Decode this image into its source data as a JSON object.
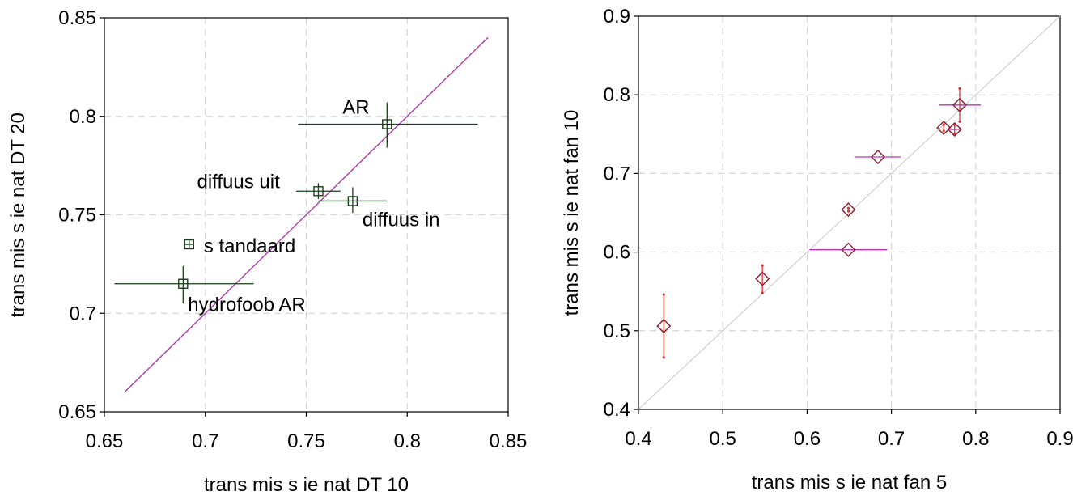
{
  "chart_data": [
    {
      "type": "scatter",
      "xlabel": "trans mis s ie  nat DT 10",
      "ylabel": "trans mis s ie  nat DT 20",
      "xlim": [
        0.65,
        0.85
      ],
      "ylim": [
        0.65,
        0.85
      ],
      "xticks": [
        0.65,
        0.7,
        0.75,
        0.8,
        0.85
      ],
      "yticks": [
        0.65,
        0.7,
        0.75,
        0.8,
        0.85
      ],
      "xtick_labels": [
        "0.65",
        "0.7",
        "0.75",
        "0.8",
        "0.85"
      ],
      "ytick_labels": [
        "0.65",
        "0.7",
        "0.75",
        "0.8",
        "0.85"
      ],
      "grid": true,
      "marker_color": "#1a3d1a",
      "errorbar_color": "#1a3d1a",
      "fit_line": {
        "color": "#b03aa8",
        "x": [
          0.66,
          0.84
        ],
        "y": [
          0.66,
          0.84
        ]
      },
      "points": [
        {
          "label": "AR",
          "x": 0.79,
          "y": 0.796,
          "xerr": [
            0.044,
            0.045
          ],
          "yerr": [
            0.012,
            0.011
          ]
        },
        {
          "label": "diffuus  uit",
          "x": 0.756,
          "y": 0.762,
          "xerr": [
            0.011,
            0.011
          ],
          "yerr": [
            0.004,
            0.004
          ]
        },
        {
          "label": "diffuus  in",
          "x": 0.773,
          "y": 0.757,
          "xerr": [
            0.017,
            0.017
          ],
          "yerr": [
            0.006,
            0.007
          ]
        },
        {
          "label": "s tandaard",
          "x": 0.692,
          "y": 0.735,
          "xerr": [
            0.002,
            0.002
          ],
          "yerr": [
            0.002,
            0.002
          ]
        },
        {
          "label": "hydrofoob AR",
          "x": 0.689,
          "y": 0.715,
          "xerr": [
            0.034,
            0.035
          ],
          "yerr": [
            0.01,
            0.009
          ]
        }
      ]
    },
    {
      "type": "scatter",
      "xlabel": "trans mis s ie  nat fan 5",
      "ylabel": "trans mis s ie  nat fan 10",
      "xlim": [
        0.4,
        0.9
      ],
      "ylim": [
        0.4,
        0.9
      ],
      "xticks": [
        0.4,
        0.5,
        0.6,
        0.7,
        0.8,
        0.9
      ],
      "yticks": [
        0.4,
        0.5,
        0.6,
        0.7,
        0.8,
        0.9
      ],
      "xtick_labels": [
        "0.4",
        "0.5",
        "0.6",
        "0.7",
        "0.8",
        "0.9"
      ],
      "ytick_labels": [
        "0.4",
        "0.5",
        "0.6",
        "0.7",
        "0.8",
        "0.9"
      ],
      "grid": true,
      "marker_color": "#8b1a2a",
      "xerror_color": "#b03aa8",
      "yerror_color": "#e03030",
      "identity_line": {
        "color": "#c8c8c8",
        "x": [
          0.4,
          0.9
        ],
        "y": [
          0.4,
          0.9
        ]
      },
      "points": [
        {
          "x": 0.43,
          "y": 0.506,
          "xerr": [
            0,
            0
          ],
          "yerr": [
            0.04,
            0.04
          ]
        },
        {
          "x": 0.547,
          "y": 0.566,
          "xerr": [
            0,
            0
          ],
          "yerr": [
            0.018,
            0.017
          ]
        },
        {
          "x": 0.649,
          "y": 0.603,
          "xerr": [
            0.046,
            0.046
          ],
          "yerr": [
            0,
            0
          ]
        },
        {
          "x": 0.649,
          "y": 0.654,
          "xerr": [
            0,
            0
          ],
          "yerr": [
            0.002,
            0.002
          ]
        },
        {
          "x": 0.684,
          "y": 0.721,
          "xerr": [
            0.028,
            0.027
          ],
          "yerr": [
            0,
            0
          ]
        },
        {
          "x": 0.762,
          "y": 0.758,
          "xerr": [
            0,
            0
          ],
          "yerr": [
            0.004,
            0.004
          ]
        },
        {
          "x": 0.775,
          "y": 0.756,
          "xerr": [
            0.007,
            0.008
          ],
          "yerr": [
            0.006,
            0.006
          ]
        },
        {
          "x": 0.781,
          "y": 0.787,
          "xerr": [
            0.025,
            0.025
          ],
          "yerr": [
            0.021,
            0.021
          ]
        }
      ]
    }
  ]
}
